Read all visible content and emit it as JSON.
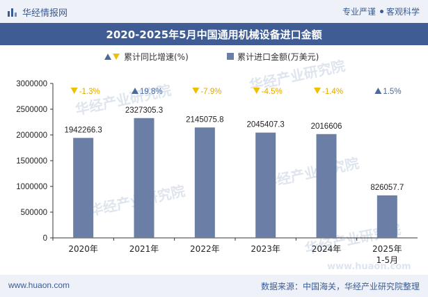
{
  "header": {
    "brand": "华经情报网",
    "slogan_left": "专业严谨",
    "slogan_right": "客观科学",
    "logo_icon": "bar-chart-logo-icon"
  },
  "title": "2020-2025年5月中国通用机械设备进口金额",
  "legend": {
    "growth_label": "累计同比增速(%)",
    "amount_label": "累计进口金额(万美元)"
  },
  "watermark": {
    "text": "华经产业研究院",
    "url": "www.huaon.com"
  },
  "footer": {
    "website": "www.huaon.com",
    "source": "数据来源：中国海关，华经产业研究院整理"
  },
  "colors": {
    "bar": "#6b7ea5",
    "up": "#4a6a9a",
    "down": "#f0c000",
    "title_bg": "#3f5c95"
  },
  "chart_data": {
    "type": "bar",
    "categories": [
      "2020年",
      "2021年",
      "2022年",
      "2023年",
      "2024年",
      "2025年\n1-5月"
    ],
    "category_lines": [
      [
        "2020年"
      ],
      [
        "2021年"
      ],
      [
        "2022年"
      ],
      [
        "2023年"
      ],
      [
        "2024年"
      ],
      [
        "2025年",
        "1-5月"
      ]
    ],
    "series": [
      {
        "name": "累计进口金额(万美元)",
        "values": [
          1942266.3,
          2327305.3,
          2145075.8,
          2045407.3,
          2016606,
          826057.7
        ],
        "labels": [
          "1942266.3",
          "2327305.3",
          "2145075.8",
          "2045407.3",
          "2016606",
          "826057.7"
        ]
      },
      {
        "name": "累计同比增速(%)",
        "values": [
          -1.3,
          19.8,
          -7.9,
          -4.5,
          -1.4,
          1.5
        ],
        "labels": [
          "-1.3%",
          "19.8%",
          "-7.9%",
          "-4.5%",
          "-1.4%",
          "1.5%"
        ]
      }
    ],
    "ylim": [
      0,
      3000000
    ],
    "yticks": [
      0,
      500000,
      1000000,
      1500000,
      2000000,
      2500000,
      3000000
    ],
    "ytick_labels": [
      "0",
      "500000",
      "1000000",
      "1500000",
      "2000000",
      "2500000",
      "3000000"
    ],
    "legend_position": "top",
    "grid": false
  }
}
